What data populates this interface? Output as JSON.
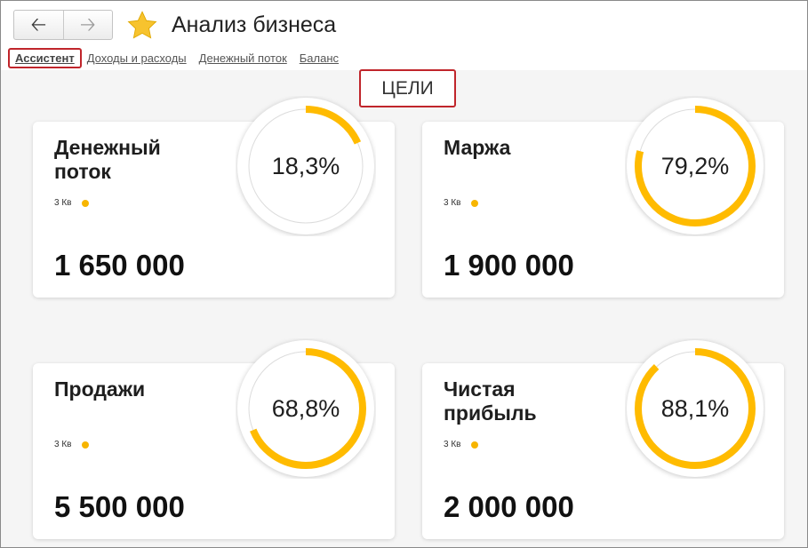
{
  "window": {
    "title": "Анализ бизнеса",
    "nav": {
      "back_icon": "arrow-left-icon",
      "forward_icon": "arrow-right-icon"
    },
    "favorite_icon": "star-icon",
    "favorite_color": "#f7c32e"
  },
  "tabs": [
    {
      "label": "Ассистент",
      "active": true
    },
    {
      "label": "Доходы и расходы"
    },
    {
      "label": "Денежный поток"
    },
    {
      "label": "Баланс"
    }
  ],
  "section_title": "ЦЕЛИ",
  "accent_color": "#ffbb00",
  "cards": [
    {
      "title": "Денежный поток",
      "period": "3 Кв",
      "amount": "1 650 000",
      "percent_label": "18,3%",
      "percent": 18.3
    },
    {
      "title": "Маржа",
      "period": "3 Кв",
      "amount": "1 900 000",
      "percent_label": "79,2%",
      "percent": 79.2
    },
    {
      "title": "Продажи",
      "period": "3 Кв",
      "amount": "5 500 000",
      "percent_label": "68,8%",
      "percent": 68.8
    },
    {
      "title": "Чистая прибыль",
      "period": "3 Кв",
      "amount": "2 000 000",
      "percent_label": "88,1%",
      "percent": 88.1
    }
  ]
}
